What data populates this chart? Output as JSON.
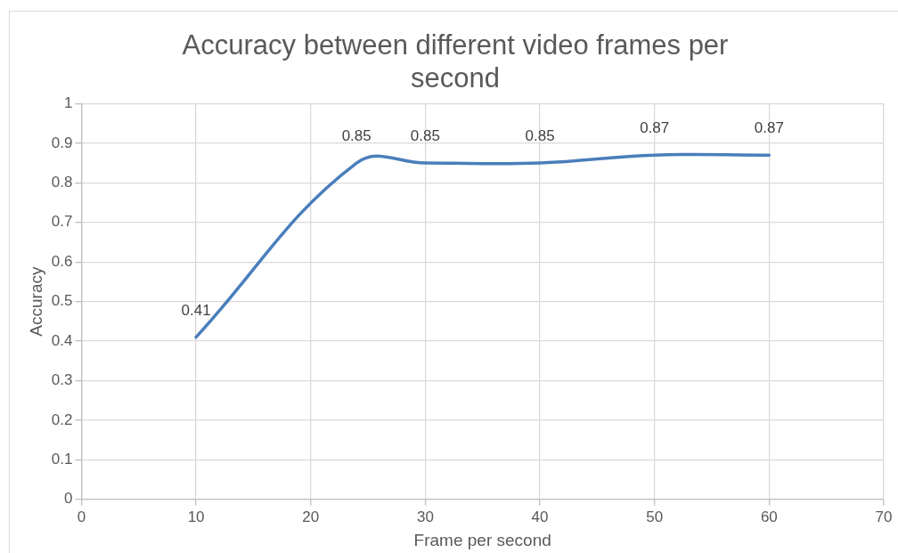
{
  "chart_data": {
    "type": "line",
    "title": "Accuracy between different video frames per second",
    "xlabel": "Frame per second",
    "ylabel": "Accuracy",
    "x": [
      10,
      24,
      30,
      40,
      50,
      60
    ],
    "series": [
      {
        "color": "#4a7ebb",
        "values": [
          0.41,
          0.85,
          0.85,
          0.85,
          0.87,
          0.87
        ]
      }
    ],
    "xlim": [
      0,
      70
    ],
    "xticks": [
      0,
      10,
      20,
      30,
      40,
      50,
      60,
      70
    ],
    "ylim": [
      0,
      1
    ],
    "yticks": [
      0,
      0.1,
      0.2,
      0.3,
      0.4,
      0.5,
      0.6,
      0.7,
      0.8,
      0.9,
      1
    ],
    "grid": true,
    "data_labels": true,
    "marker": "none",
    "line_style": "solid"
  }
}
